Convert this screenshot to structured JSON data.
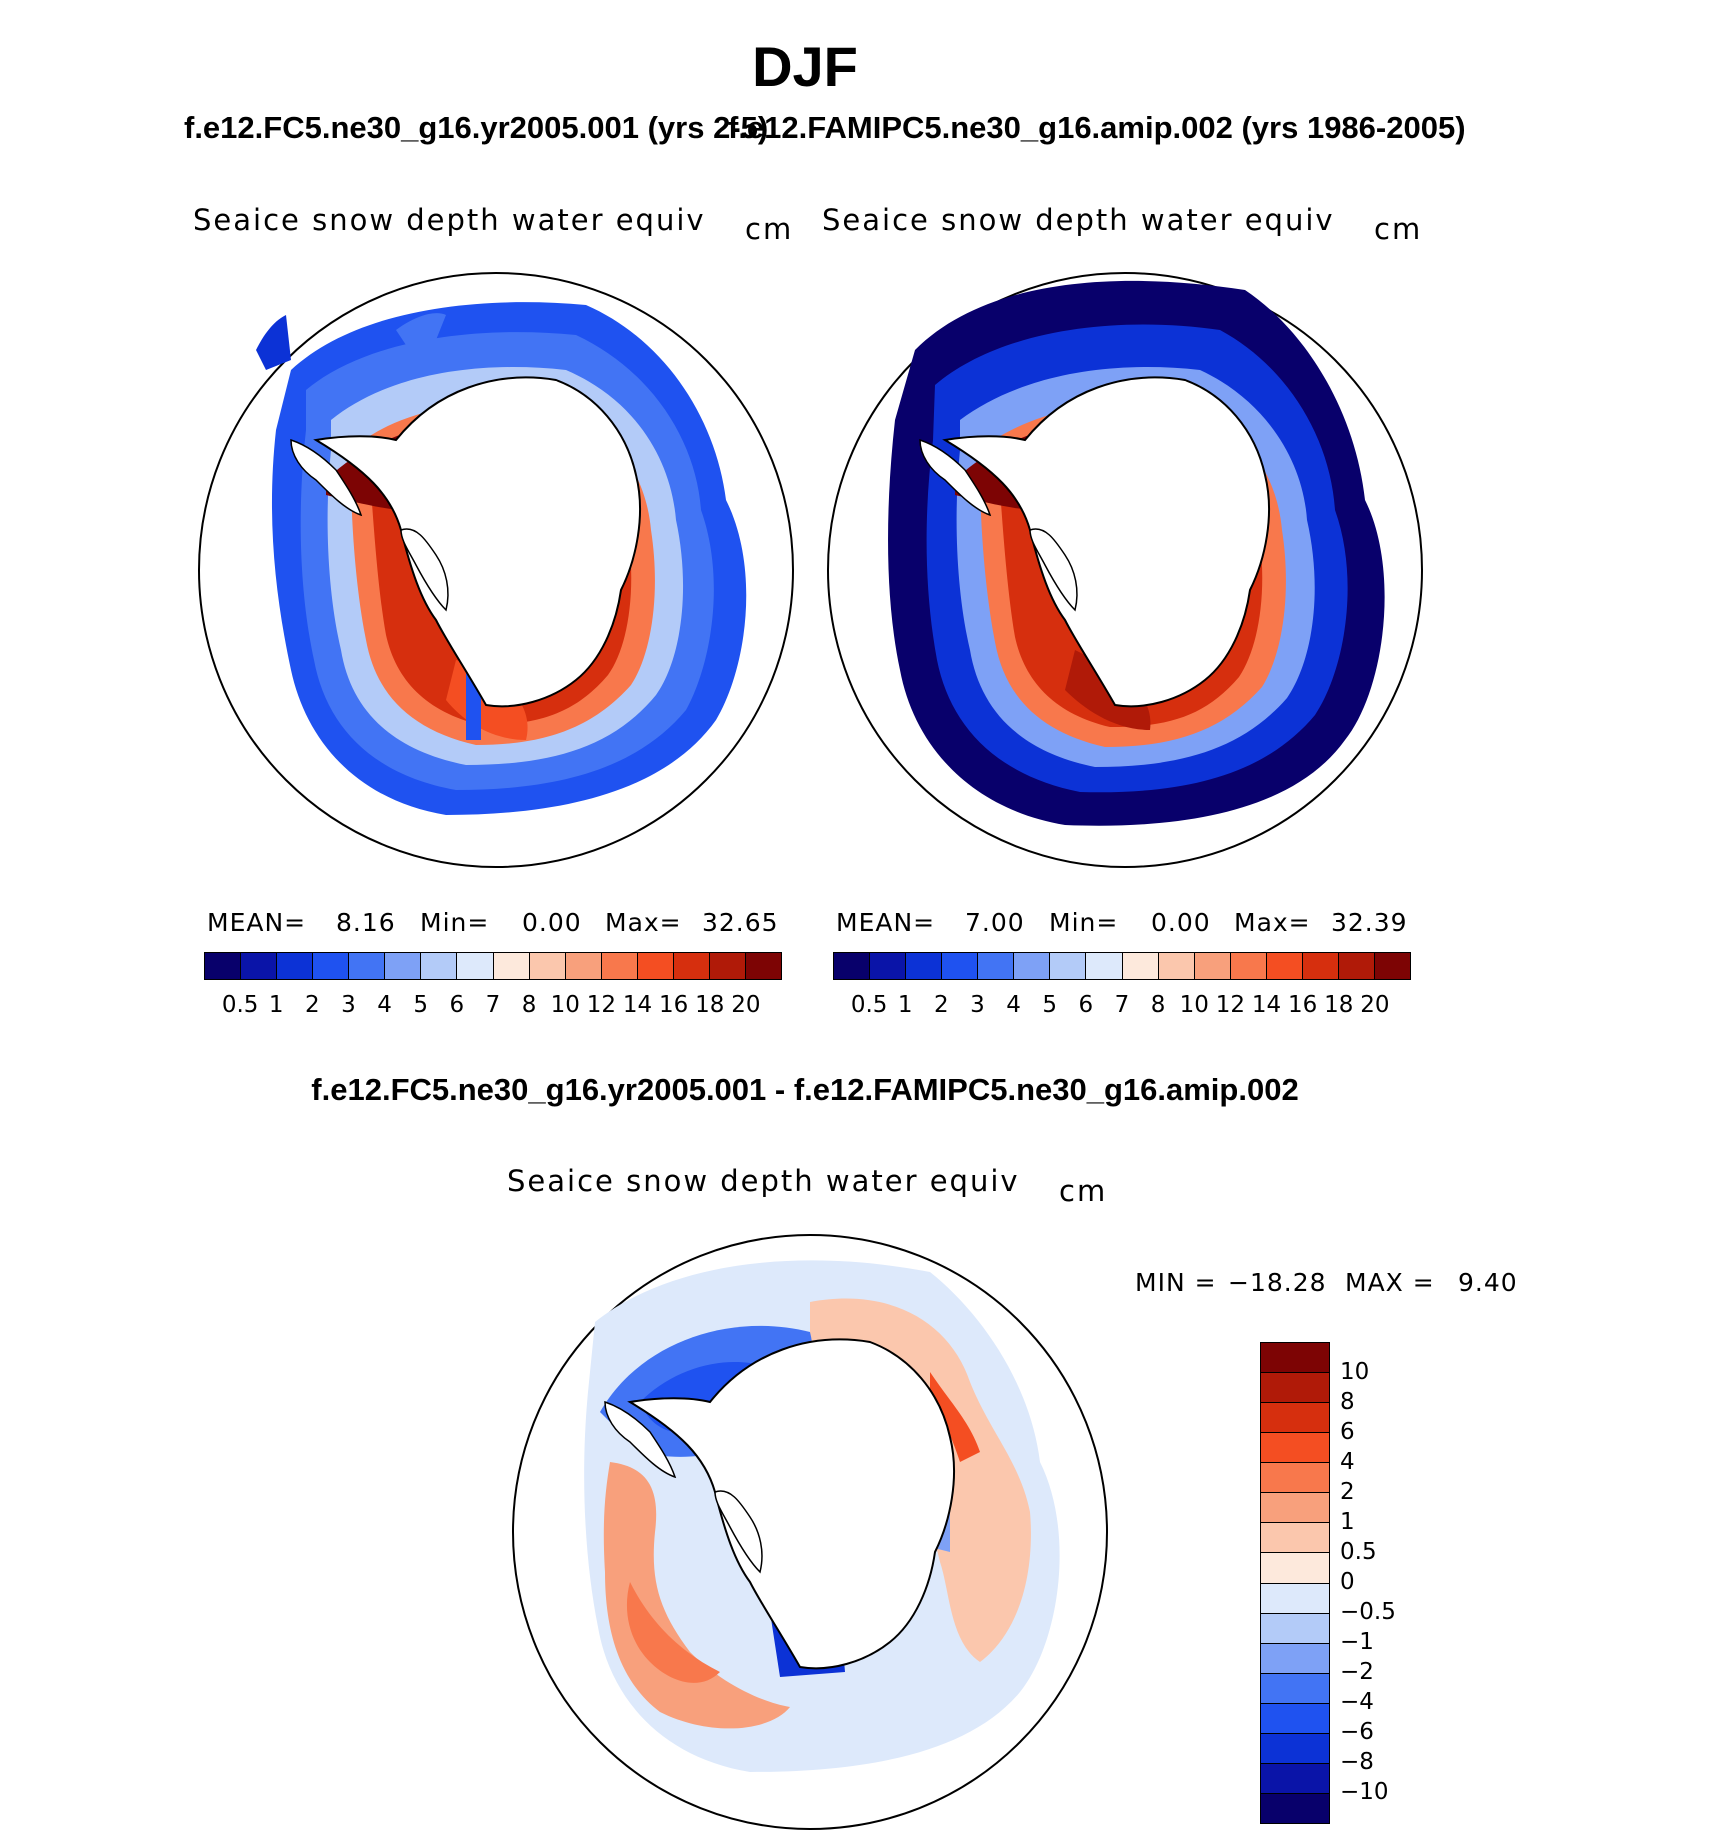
{
  "season": "DJF",
  "panels": {
    "left": {
      "case_title": "f.e12.FC5.ne30_g16.yr2005.001 (yrs 2-5)",
      "title_visible": "f.e12.FC5.ne30_g16.yr2005.001 (yrs 2-5)",
      "variable": "Seaice snow depth water equiv",
      "units": "cm",
      "mean_label": "MEAN=",
      "mean": "8.16",
      "min_label": "Min=",
      "min": "0.00",
      "max_label": "Max=",
      "max": "32.65"
    },
    "right": {
      "case_title": "f.e12.FAMIPC5.ne30_g16.amip.002 (yrs 1986-2005)",
      "variable": "Seaice snow depth water equiv",
      "units": "cm",
      "mean_label": "MEAN=",
      "mean": "7.00",
      "min_label": "Min=",
      "min": "0.00",
      "max_label": "Max=",
      "max": "32.39"
    },
    "diff": {
      "case_title": "f.e12.FC5.ne30_g16.yr2005.001 - f.e12.FAMIPC5.ne30_g16.amip.002",
      "variable": "Seaice snow depth water equiv",
      "units": "cm",
      "min_label": "MIN =",
      "min": "−18.28",
      "max_label": "MAX =",
      "max": "9.40"
    }
  },
  "chart_data": [
    {
      "type": "heatmap",
      "projection": "south-polar-stereographic",
      "title": "Seaice snow depth water equiv",
      "units": "cm",
      "stats": {
        "mean": 8.16,
        "min": 0.0,
        "max": 32.65
      },
      "colorbar_levels": [
        "0.5",
        "1",
        "2",
        "3",
        "4",
        "5",
        "6",
        "7",
        "8",
        "10",
        "12",
        "14",
        "16",
        "18",
        "20"
      ],
      "colorbar_colors": [
        "#08006b",
        "#0a14a8",
        "#0c32d6",
        "#1f52f0",
        "#4274f4",
        "#7ea1f6",
        "#b3cbf8",
        "#dde9fb",
        "#fde9dc",
        "#fbc7ad",
        "#f8a07c",
        "#f8784c",
        "#f44e22",
        "#d62f0e",
        "#b01a08",
        "#7d0404"
      ]
    },
    {
      "type": "heatmap",
      "projection": "south-polar-stereographic",
      "title": "Seaice snow depth water equiv",
      "units": "cm",
      "stats": {
        "mean": 7.0,
        "min": 0.0,
        "max": 32.39
      },
      "colorbar_levels": [
        "0.5",
        "1",
        "2",
        "3",
        "4",
        "5",
        "6",
        "7",
        "8",
        "10",
        "12",
        "14",
        "16",
        "18",
        "20"
      ],
      "colorbar_colors": [
        "#08006b",
        "#0a14a8",
        "#0c32d6",
        "#1f52f0",
        "#4274f4",
        "#7ea1f6",
        "#b3cbf8",
        "#dde9fb",
        "#fde9dc",
        "#fbc7ad",
        "#f8a07c",
        "#f8784c",
        "#f44e22",
        "#d62f0e",
        "#b01a08",
        "#7d0404"
      ]
    },
    {
      "type": "heatmap",
      "projection": "south-polar-stereographic",
      "title": "Seaice snow depth water equiv",
      "units": "cm",
      "stats": {
        "min": -18.28,
        "max": 9.4
      },
      "colorbar_levels": [
        "10",
        "8",
        "6",
        "4",
        "2",
        "1",
        "0.5",
        "0",
        "−0.5",
        "−1",
        "−2",
        "−4",
        "−6",
        "−8",
        "−10"
      ],
      "colorbar_colors": [
        "#7d0404",
        "#b01a08",
        "#d62f0e",
        "#f44e22",
        "#f8784c",
        "#f8a07c",
        "#fbc7ad",
        "#fde9dc",
        "#dde9fb",
        "#b3cbf8",
        "#7ea1f6",
        "#4274f4",
        "#1f52f0",
        "#0c32d6",
        "#0a14a8",
        "#08006b"
      ]
    }
  ]
}
